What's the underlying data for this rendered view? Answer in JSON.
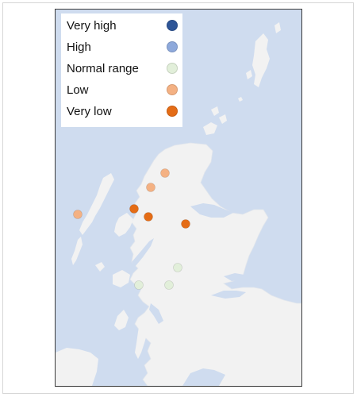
{
  "legend": {
    "items": [
      {
        "label": "Very high",
        "color": "#2e5597"
      },
      {
        "label": "High",
        "color": "#8ea9db"
      },
      {
        "label": "Normal range",
        "color": "#e2efda"
      },
      {
        "label": "Low",
        "color": "#f4b183"
      },
      {
        "label": "Very low",
        "color": "#e46c16"
      }
    ]
  },
  "map": {
    "water_color": "#cfdcef",
    "land_color": "#f2f2f2",
    "sites": [
      {
        "category": "Low"
      },
      {
        "category": "Low"
      },
      {
        "category": "Low"
      },
      {
        "category": "Very low"
      },
      {
        "category": "Very low"
      },
      {
        "category": "Very low"
      },
      {
        "category": "Normal range"
      },
      {
        "category": "Normal range"
      },
      {
        "category": "Normal range"
      }
    ]
  }
}
